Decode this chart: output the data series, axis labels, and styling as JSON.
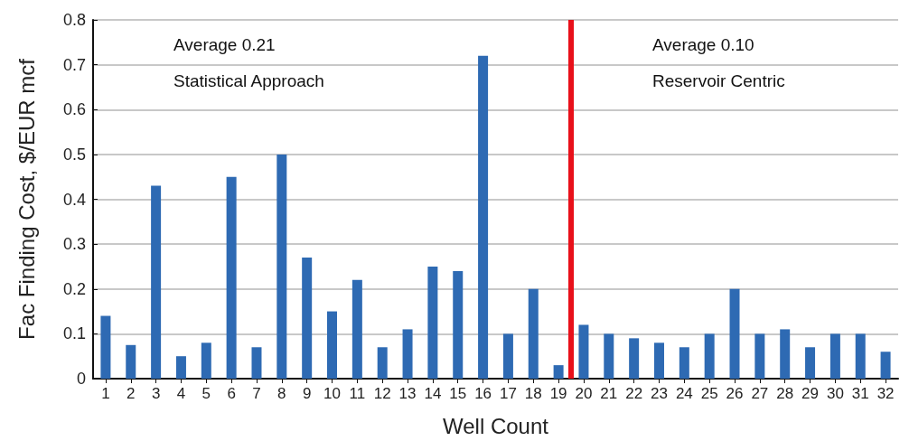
{
  "chart_data": {
    "type": "bar",
    "xlabel": "Well Count",
    "ylabel": "Fac Finding Cost, $/EUR mcf",
    "x": [
      1,
      2,
      3,
      4,
      5,
      6,
      7,
      8,
      9,
      10,
      11,
      12,
      13,
      14,
      15,
      16,
      17,
      18,
      19,
      20,
      21,
      22,
      23,
      24,
      25,
      26,
      27,
      28,
      29,
      30,
      31,
      32
    ],
    "values": [
      0.14,
      0.075,
      0.43,
      0.05,
      0.08,
      0.45,
      0.07,
      0.5,
      0.27,
      0.15,
      0.22,
      0.07,
      0.11,
      0.25,
      0.24,
      0.72,
      0.1,
      0.2,
      0.03,
      0.12,
      0.1,
      0.09,
      0.08,
      0.07,
      0.1,
      0.2,
      0.1,
      0.11,
      0.07,
      0.1,
      0.1,
      0.06
    ],
    "color": "#2e6ab3",
    "xlim": [
      0.5,
      32.5
    ],
    "xticks": [
      1,
      2,
      3,
      4,
      5,
      6,
      7,
      8,
      9,
      10,
      11,
      12,
      13,
      14,
      15,
      16,
      17,
      18,
      19,
      20,
      21,
      22,
      23,
      24,
      25,
      26,
      27,
      28,
      29,
      30,
      31,
      32
    ],
    "ylim": [
      0,
      0.8
    ],
    "yticks": [
      0,
      0.1,
      0.2,
      0.3,
      0.4,
      0.5,
      0.6,
      0.7,
      0.8
    ],
    "grid": "y",
    "ref_lines": [
      {
        "axis": "x",
        "value": 19.5,
        "color": "#e8101a"
      }
    ],
    "annotations": [
      "Average 0.21",
      "Statistical Approach",
      "Average 0.10",
      "Reservoir Centric"
    ]
  }
}
